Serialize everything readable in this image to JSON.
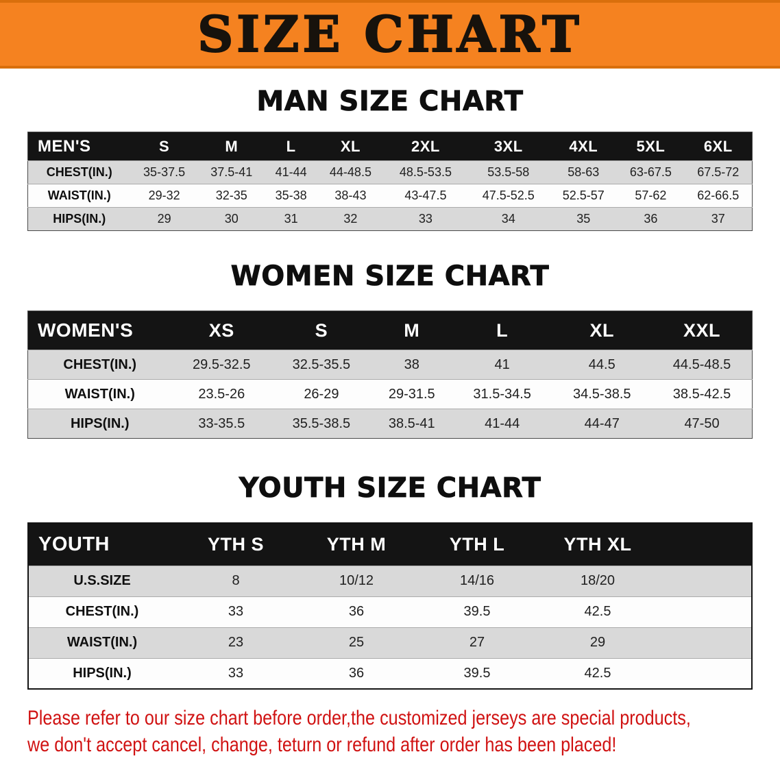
{
  "banner": {
    "title": "SIZE CHART"
  },
  "colors": {
    "banner_bg": "#F58220",
    "banner_border": "#D96F0C",
    "table_header_bg": "#141414",
    "table_header_text": "#FFFFFF",
    "shaded_row_bg": "#D9D9D9",
    "white_row_bg": "#FDFDFD",
    "note_text": "#D01212"
  },
  "sections": {
    "men": {
      "title": "MAN SIZE CHART",
      "header_label": "MEN'S",
      "columns": [
        "S",
        "M",
        "L",
        "XL",
        "2XL",
        "3XL",
        "4XL",
        "5XL",
        "6XL"
      ],
      "rows": [
        {
          "label": "CHEST(IN.)",
          "values": [
            "35-37.5",
            "37.5-41",
            "41-44",
            "44-48.5",
            "48.5-53.5",
            "53.5-58",
            "58-63",
            "63-67.5",
            "67.5-72"
          ]
        },
        {
          "label": "WAIST(IN.)",
          "values": [
            "29-32",
            "32-35",
            "35-38",
            "38-43",
            "43-47.5",
            "47.5-52.5",
            "52.5-57",
            "57-62",
            "62-66.5"
          ]
        },
        {
          "label": "HIPS(IN.)",
          "values": [
            "29",
            "30",
            "31",
            "32",
            "33",
            "34",
            "35",
            "36",
            "37"
          ]
        }
      ]
    },
    "women": {
      "title": "WOMEN SIZE CHART",
      "header_label": "WOMEN'S",
      "columns": [
        "XS",
        "S",
        "M",
        "L",
        "XL",
        "XXL"
      ],
      "rows": [
        {
          "label": "CHEST(IN.)",
          "values": [
            "29.5-32.5",
            "32.5-35.5",
            "38",
            "41",
            "44.5",
            "44.5-48.5"
          ]
        },
        {
          "label": "WAIST(IN.)",
          "values": [
            "23.5-26",
            "26-29",
            "29-31.5",
            "31.5-34.5",
            "34.5-38.5",
            "38.5-42.5"
          ]
        },
        {
          "label": "HIPS(IN.)",
          "values": [
            "33-35.5",
            "35.5-38.5",
            "38.5-41",
            "41-44",
            "44-47",
            "47-50"
          ]
        }
      ]
    },
    "youth": {
      "title": "YOUTH SIZE CHART",
      "header_label": "YOUTH",
      "columns": [
        "YTH S",
        "YTH M",
        "YTH L",
        "YTH XL"
      ],
      "rows": [
        {
          "label": "U.S.SIZE",
          "values": [
            "8",
            "10/12",
            "14/16",
            "18/20"
          ]
        },
        {
          "label": "CHEST(IN.)",
          "values": [
            "33",
            "36",
            "39.5",
            "42.5"
          ]
        },
        {
          "label": "WAIST(IN.)",
          "values": [
            "23",
            "25",
            "27",
            "29"
          ]
        },
        {
          "label": "HIPS(IN.)",
          "values": [
            "33",
            "36",
            "39.5",
            "42.5"
          ]
        }
      ]
    }
  },
  "footer": {
    "line1": "Please refer to our size chart before order,the customized jerseys are special products,",
    "line2": "we don't accept cancel, change, teturn or refund after order has been placed!"
  }
}
